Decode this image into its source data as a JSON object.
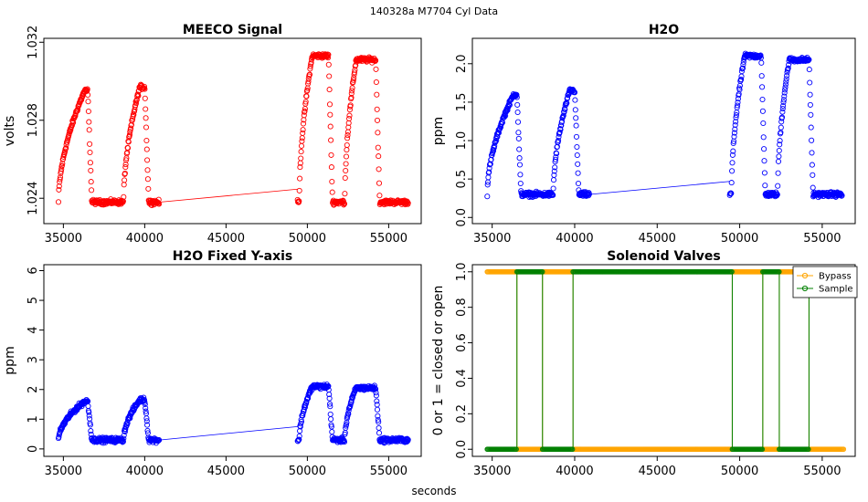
{
  "suptitle": "140328a    M7704    Cyl Data",
  "xlabel_common": "seconds",
  "chart_data": [
    {
      "type": "scatter",
      "title": "MEECO Signal",
      "xlabel": "",
      "ylabel": "volts",
      "xlim": [
        33800,
        57000
      ],
      "ylim": [
        1.0227,
        1.0322
      ],
      "xticks": [
        35000,
        40000,
        45000,
        50000,
        55000
      ],
      "yticks": [
        1.024,
        1.028,
        1.032
      ],
      "ytick_labels": [
        "1.024",
        "1.028",
        "1.032"
      ],
      "color": "#ff0000",
      "connect_gap": [
        40900,
        49400
      ],
      "baseline": 1.0238,
      "plateaus": [
        {
          "start": 34700,
          "rise_end": 36300,
          "end": 36500,
          "peak": 1.0295
        },
        {
          "start": 38700,
          "rise_end": 39700,
          "end": 40000,
          "peak": 1.0297
        },
        {
          "start": 49500,
          "rise_end": 50300,
          "end": 51300,
          "peak": 1.0313
        },
        {
          "start": 52300,
          "rise_end": 53000,
          "end": 54200,
          "peak": 1.0311
        }
      ]
    },
    {
      "type": "scatter",
      "title": "H2O",
      "xlabel": "",
      "ylabel": "ppm",
      "xlim": [
        33800,
        57000
      ],
      "ylim": [
        -0.08,
        2.33
      ],
      "xticks": [
        35000,
        40000,
        45000,
        50000,
        55000
      ],
      "yticks": [
        0,
        0.5,
        1,
        1.5,
        2
      ],
      "ytick_labels": [
        "0.0",
        "0.5",
        "1.0",
        "1.5",
        "2.0"
      ],
      "color": "#0000ff",
      "connect_gap": [
        40900,
        49400
      ],
      "baseline": 0.3,
      "plateaus": [
        {
          "start": 34700,
          "rise_end": 36300,
          "end": 36500,
          "peak": 1.6
        },
        {
          "start": 38700,
          "rise_end": 39700,
          "end": 40000,
          "peak": 1.65
        },
        {
          "start": 49500,
          "rise_end": 50300,
          "end": 51300,
          "peak": 2.1
        },
        {
          "start": 52300,
          "rise_end": 53000,
          "end": 54200,
          "peak": 2.05
        }
      ]
    },
    {
      "type": "scatter",
      "title": "H2O Fixed Y-axis",
      "xlabel": "",
      "ylabel": "ppm",
      "xlim": [
        33800,
        57000
      ],
      "ylim": [
        -0.25,
        6.2
      ],
      "xticks": [
        35000,
        40000,
        45000,
        50000,
        55000
      ],
      "yticks": [
        0,
        1,
        2,
        3,
        4,
        5,
        6
      ],
      "ytick_labels": [
        "0",
        "1",
        "2",
        "3",
        "4",
        "5",
        "6"
      ],
      "color": "#0000ff",
      "connect_gap": [
        40900,
        49400
      ],
      "baseline": 0.3,
      "plateaus": [
        {
          "start": 34700,
          "rise_end": 36300,
          "end": 36500,
          "peak": 1.6
        },
        {
          "start": 38700,
          "rise_end": 39700,
          "end": 40000,
          "peak": 1.65
        },
        {
          "start": 49500,
          "rise_end": 50300,
          "end": 51300,
          "peak": 2.1
        },
        {
          "start": 52300,
          "rise_end": 53000,
          "end": 54200,
          "peak": 2.05
        }
      ]
    },
    {
      "type": "line",
      "title": "Solenoid Valves",
      "xlabel": "",
      "ylabel": "0 or 1 = closed or open",
      "xlim": [
        33800,
        57000
      ],
      "ylim": [
        -0.04,
        1.04
      ],
      "xticks": [
        35000,
        40000,
        45000,
        50000,
        55000
      ],
      "yticks": [
        0,
        0.2,
        0.4,
        0.6,
        0.8,
        1
      ],
      "ytick_labels": [
        "0.0",
        "0.2",
        "0.4",
        "0.6",
        "0.8",
        "1.0"
      ],
      "legend": {
        "position": "top-right",
        "entries": [
          {
            "label": "Bypass",
            "color": "#ffa500"
          },
          {
            "label": "Sample",
            "color": "#008000"
          }
        ]
      },
      "series": [
        {
          "name": "Bypass",
          "color": "#ffa500",
          "segments": [
            [
              34700,
              36500,
              1
            ],
            [
              36500,
              38050,
              0
            ],
            [
              38050,
              39900,
              1
            ],
            [
              39900,
              49550,
              0
            ],
            [
              49550,
              51400,
              1
            ],
            [
              51400,
              52400,
              0
            ],
            [
              52400,
              54200,
              1
            ],
            [
              54200,
              56300,
              0
            ]
          ]
        },
        {
          "name": "Sample",
          "color": "#008000",
          "segments": [
            [
              34700,
              36500,
              0
            ],
            [
              36500,
              38050,
              1
            ],
            [
              38050,
              39900,
              0
            ],
            [
              39900,
              49550,
              1
            ],
            [
              49550,
              51400,
              0
            ],
            [
              51400,
              52400,
              1
            ],
            [
              52400,
              54200,
              0
            ],
            [
              54200,
              56300,
              1
            ]
          ]
        }
      ]
    }
  ]
}
